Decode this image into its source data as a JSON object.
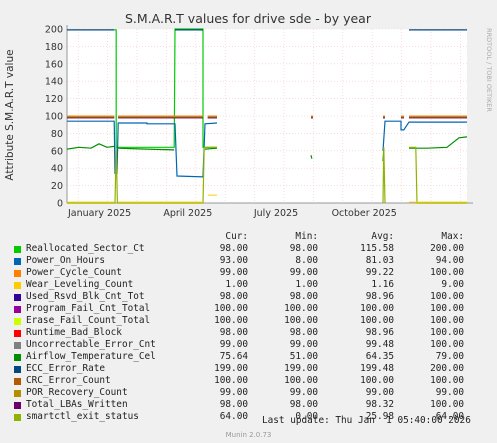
{
  "chart_data": {
    "type": "line",
    "title": "S.M.A.R.T values for drive sde - by year",
    "ylabel": "Attribute S.M.A.R.T value",
    "ylim": [
      0,
      200
    ],
    "yticks": [
      "0",
      "20",
      "40",
      "60",
      "80",
      "100",
      "120",
      "140",
      "160",
      "180",
      "200"
    ],
    "xticks": [
      "January 2025",
      "April 2025",
      "July 2025",
      "October 2025"
    ],
    "grid": true,
    "side_label": "RRDTOOL / TOBI OETIKER",
    "footer": "Munin 2.0.73",
    "last_update": "Last update: Thu Jan  1 05:40:00 2026",
    "columns": [
      "Cur:",
      "Min:",
      "Avg:",
      "Max:"
    ],
    "series": [
      {
        "name": "Reallocated_Sector_Ct",
        "color": "#00cc00",
        "cur": "98.00",
        "min": "98.00",
        "avg": "115.58",
        "max": "200.00"
      },
      {
        "name": "Power_On_Hours",
        "color": "#0066b3",
        "cur": "93.00",
        "min": "8.00",
        "avg": "81.03",
        "max": "94.00"
      },
      {
        "name": "Power_Cycle_Count",
        "color": "#ff8000",
        "cur": "99.00",
        "min": "99.00",
        "avg": "99.22",
        "max": "100.00"
      },
      {
        "name": "Wear_Leveling_Count",
        "color": "#ffcc00",
        "cur": "1.00",
        "min": "1.00",
        "avg": "1.16",
        "max": "9.00"
      },
      {
        "name": "Used_Rsvd_Blk_Cnt_Tot",
        "color": "#330099",
        "cur": "98.00",
        "min": "98.00",
        "avg": "98.96",
        "max": "100.00"
      },
      {
        "name": "Program_Fail_Cnt_Total",
        "color": "#990099",
        "cur": "100.00",
        "min": "100.00",
        "avg": "100.00",
        "max": "100.00"
      },
      {
        "name": "Erase_Fail_Count_Total",
        "color": "#ccff00",
        "cur": "100.00",
        "min": "100.00",
        "avg": "100.00",
        "max": "100.00"
      },
      {
        "name": "Runtime_Bad_Block",
        "color": "#ff0000",
        "cur": "98.00",
        "min": "98.00",
        "avg": "98.96",
        "max": "100.00"
      },
      {
        "name": "Uncorrectable_Error_Cnt",
        "color": "#808080",
        "cur": "99.00",
        "min": "99.00",
        "avg": "99.48",
        "max": "100.00"
      },
      {
        "name": "Airflow_Temperature_Cel",
        "color": "#008f00",
        "cur": "75.64",
        "min": "51.00",
        "avg": "64.35",
        "max": "79.00"
      },
      {
        "name": "ECC_Error_Rate",
        "color": "#00487d",
        "cur": "199.00",
        "min": "199.00",
        "avg": "199.48",
        "max": "200.00"
      },
      {
        "name": "CRC_Error_Count",
        "color": "#b35a00",
        "cur": "100.00",
        "min": "100.00",
        "avg": "100.00",
        "max": "100.00"
      },
      {
        "name": "POR_Recovery_Count",
        "color": "#b38f00",
        "cur": "99.00",
        "min": "99.00",
        "avg": "99.00",
        "max": "99.00"
      },
      {
        "name": "Total_LBAs_Written",
        "color": "#6b006b",
        "cur": "98.00",
        "min": "98.00",
        "avg": "98.32",
        "max": "100.00"
      },
      {
        "name": "smartctl_exit_status",
        "color": "#8fb300",
        "cur": "64.00",
        "min": "0.00",
        "avg": "25.98",
        "max": "64.00"
      }
    ]
  }
}
